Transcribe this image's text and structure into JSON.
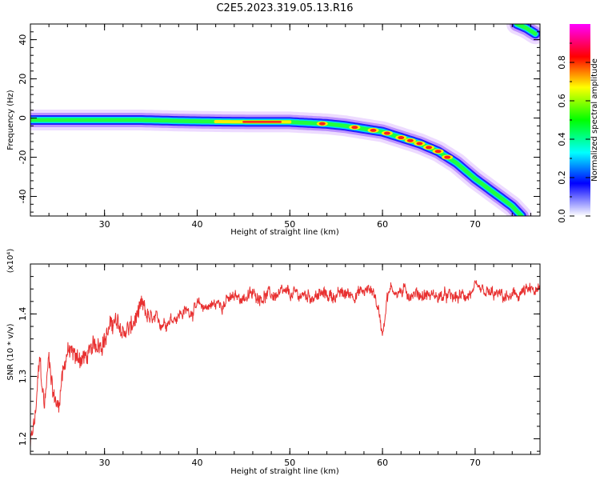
{
  "title": "C2E5.2023.319.05.13.R16",
  "chart_data": [
    {
      "type": "heatmap",
      "xlabel": "Height of straight line (km)",
      "ylabel": "Frequency (Hz)",
      "xlim": [
        22.0,
        77.0
      ],
      "ylim": [
        -50,
        48
      ],
      "xticks": [
        30,
        40,
        50,
        60,
        70
      ],
      "yticks": [
        -40,
        -20,
        0,
        20,
        40
      ],
      "yticklabels": [
        "-40",
        "-20",
        "0",
        "20",
        "40"
      ],
      "colorbar": {
        "label": "Normalized spectral amplitude",
        "range": [
          0.0,
          1.0
        ],
        "ticks": [
          "0.0",
          "0.2",
          "0.4",
          "0.6",
          "0.8"
        ],
        "tick_values": [
          0.0,
          0.2,
          0.4,
          0.6,
          0.8
        ],
        "colors": [
          "#ffffff",
          "#0000ff",
          "#00ffff",
          "#00ff00",
          "#ffff00",
          "#ff0000",
          "#ff00ff"
        ]
      },
      "ridge": {
        "x": [
          22,
          26,
          30,
          34,
          38,
          42,
          46,
          50,
          52,
          54,
          56,
          58,
          60,
          62,
          64,
          66,
          68,
          70,
          72,
          74,
          75
        ],
        "y": [
          -1,
          -1,
          -1,
          -1,
          -1.5,
          -1.8,
          -2,
          -2,
          -2.5,
          -3,
          -4,
          -5.5,
          -7,
          -10,
          -13,
          -17,
          -23,
          -31,
          -38,
          -45,
          -50
        ]
      },
      "second_ridge": {
        "x": [
          74.5,
          75.5,
          76.5
        ],
        "y": [
          48,
          46,
          43
        ]
      }
    },
    {
      "type": "line",
      "xlabel": "Height of straight line (km)",
      "ylabel": "SNR (10 * v/v)",
      "yscale_label": "(x10⁴)",
      "xlim": [
        22.0,
        77.0
      ],
      "ylim": [
        11750,
        14800
      ],
      "xticks": [
        30,
        40,
        50,
        60,
        70
      ],
      "yticks": [
        12000,
        13000,
        14000
      ],
      "yticklabels": [
        "1.2",
        "1.3",
        "1.4"
      ],
      "series_color": "#e83030",
      "trend": {
        "x": [
          22,
          22.5,
          23,
          23.5,
          24,
          24.5,
          25,
          25.5,
          26,
          27,
          28,
          29,
          30,
          31,
          32,
          33,
          34,
          35,
          36,
          38,
          40,
          42,
          44,
          46,
          50,
          55,
          58,
          59,
          59.5,
          60,
          60.5,
          61,
          62,
          65,
          68,
          70,
          72,
          74,
          75,
          77
        ],
        "y": [
          11900,
          12300,
          13300,
          12500,
          13300,
          12700,
          12500,
          13100,
          13400,
          13300,
          13300,
          13500,
          13600,
          13900,
          13700,
          13800,
          14100,
          13900,
          13850,
          14000,
          14100,
          14150,
          14250,
          14300,
          14300,
          14300,
          14350,
          14400,
          14100,
          13700,
          14300,
          14400,
          14350,
          14300,
          14250,
          14350,
          14300,
          14250,
          14350,
          14350
        ]
      }
    }
  ]
}
